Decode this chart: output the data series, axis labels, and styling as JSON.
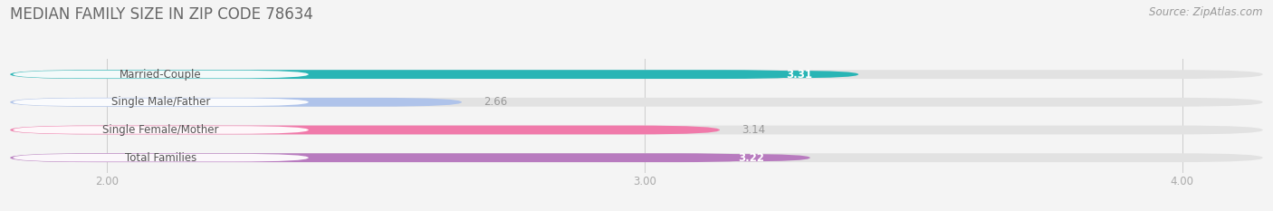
{
  "title": "MEDIAN FAMILY SIZE IN ZIP CODE 78634",
  "source": "Source: ZipAtlas.com",
  "categories": [
    "Married-Couple",
    "Single Male/Father",
    "Single Female/Mother",
    "Total Families"
  ],
  "values": [
    3.31,
    2.66,
    3.14,
    3.22
  ],
  "bar_colors": [
    "#29b5b5",
    "#afc3ea",
    "#f07aaa",
    "#b87bbf"
  ],
  "value_badge_colors": [
    "#29b5b5",
    null,
    null,
    "#b87bbf"
  ],
  "value_text_colors": [
    "#ffffff",
    "#999999",
    "#999999",
    "#ffffff"
  ],
  "xmin": 1.82,
  "xmax": 4.15,
  "xticks": [
    2.0,
    3.0,
    4.0
  ],
  "xtick_labels": [
    "2.00",
    "3.00",
    "4.00"
  ],
  "bar_height": 0.32,
  "background_color": "#f4f4f4",
  "track_color": "#e2e2e2",
  "title_fontsize": 12,
  "source_fontsize": 8.5,
  "label_fontsize": 8.5,
  "value_fontsize": 8.5,
  "tick_fontsize": 8.5
}
